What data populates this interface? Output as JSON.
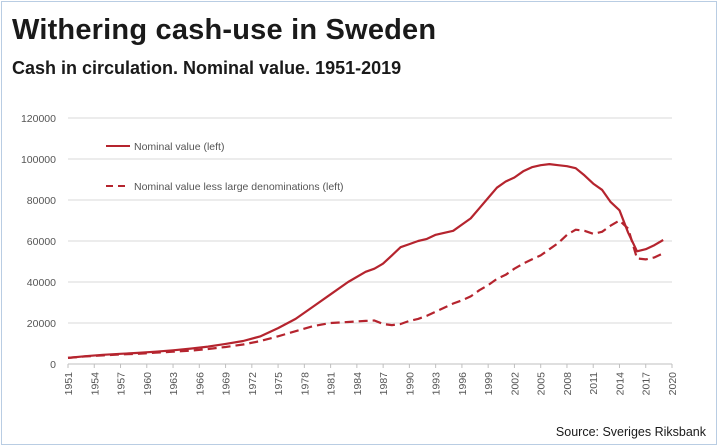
{
  "header": {
    "title": "Withering cash-use in Sweden",
    "subtitle": "Cash in circulation. Nominal value. 1951-2019"
  },
  "footer": {
    "source": "Source: Sveriges Riksbank"
  },
  "chart_data": {
    "type": "line",
    "title": "Withering cash-use in Sweden",
    "subtitle": "Cash in circulation. Nominal value. 1951-2019",
    "xlabel": "",
    "ylabel": "",
    "xlim": [
      1951,
      2020
    ],
    "ylim": [
      0,
      120000
    ],
    "yticks": [
      0,
      20000,
      40000,
      60000,
      80000,
      100000,
      120000
    ],
    "ytick_labels": [
      "0",
      "20000",
      "40000",
      "60000",
      "80000",
      "100000",
      "120000"
    ],
    "xticks": [
      1951,
      1954,
      1957,
      1960,
      1963,
      1966,
      1969,
      1972,
      1975,
      1978,
      1981,
      1984,
      1987,
      1990,
      1993,
      1996,
      1999,
      2002,
      2005,
      2008,
      2011,
      2014,
      2017,
      2020
    ],
    "grid": "horizontal",
    "legend_position": "top-left",
    "colors": {
      "series": "#b5242e",
      "grid": "#d9d9d9",
      "axis": "#bfbfbf"
    },
    "series": [
      {
        "name": "Nominal value (left)",
        "style": "solid",
        "x": [
          1951,
          1953,
          1955,
          1957,
          1959,
          1961,
          1963,
          1965,
          1967,
          1969,
          1971,
          1973,
          1975,
          1977,
          1979,
          1981,
          1983,
          1985,
          1986,
          1987,
          1988,
          1989,
          1990,
          1991,
          1992,
          1993,
          1994,
          1995,
          1996,
          1997,
          1998,
          1999,
          2000,
          2001,
          2002,
          2003,
          2004,
          2005,
          2006,
          2007,
          2008,
          2009,
          2010,
          2011,
          2012,
          2013,
          2014,
          2015,
          2016,
          2017,
          2018,
          2019
        ],
        "values": [
          3000,
          3800,
          4500,
          5000,
          5400,
          6000,
          6700,
          7500,
          8500,
          9800,
          11200,
          13500,
          17500,
          22000,
          28000,
          34000,
          40000,
          45000,
          46500,
          49000,
          53000,
          57000,
          58500,
          60000,
          61000,
          63000,
          64000,
          65000,
          68000,
          71000,
          76000,
          81000,
          86000,
          89000,
          91000,
          94000,
          96000,
          97000,
          97500,
          97000,
          96500,
          95500,
          92000,
          88000,
          85000,
          79000,
          75000,
          64000,
          55000,
          56000,
          58000,
          60500
        ]
      },
      {
        "name": "Nominal value less large denominations (left)",
        "style": "dashed",
        "x": [
          1951,
          1953,
          1955,
          1957,
          1959,
          1961,
          1963,
          1965,
          1967,
          1969,
          1971,
          1973,
          1975,
          1977,
          1979,
          1981,
          1983,
          1985,
          1986,
          1987,
          1988,
          1989,
          1990,
          1991,
          1992,
          1993,
          1994,
          1995,
          1996,
          1997,
          1998,
          1999,
          2000,
          2001,
          2002,
          2003,
          2004,
          2005,
          2006,
          2007,
          2008,
          2009,
          2010,
          2011,
          2012,
          2013,
          2014,
          2015,
          2016,
          2017,
          2018,
          2019
        ],
        "values": [
          3000,
          3700,
          4200,
          4700,
          5000,
          5500,
          6000,
          6500,
          7300,
          8300,
          9500,
          11200,
          13500,
          16000,
          18500,
          20000,
          20500,
          21000,
          21200,
          19500,
          19000,
          19500,
          21000,
          22000,
          23500,
          25500,
          27500,
          29500,
          31000,
          33000,
          36000,
          38500,
          41500,
          43500,
          46500,
          49000,
          51000,
          53000,
          56000,
          59000,
          63000,
          65500,
          65000,
          63500,
          64500,
          67500,
          70000,
          66000,
          51500,
          51000,
          52000,
          54000
        ]
      }
    ]
  }
}
